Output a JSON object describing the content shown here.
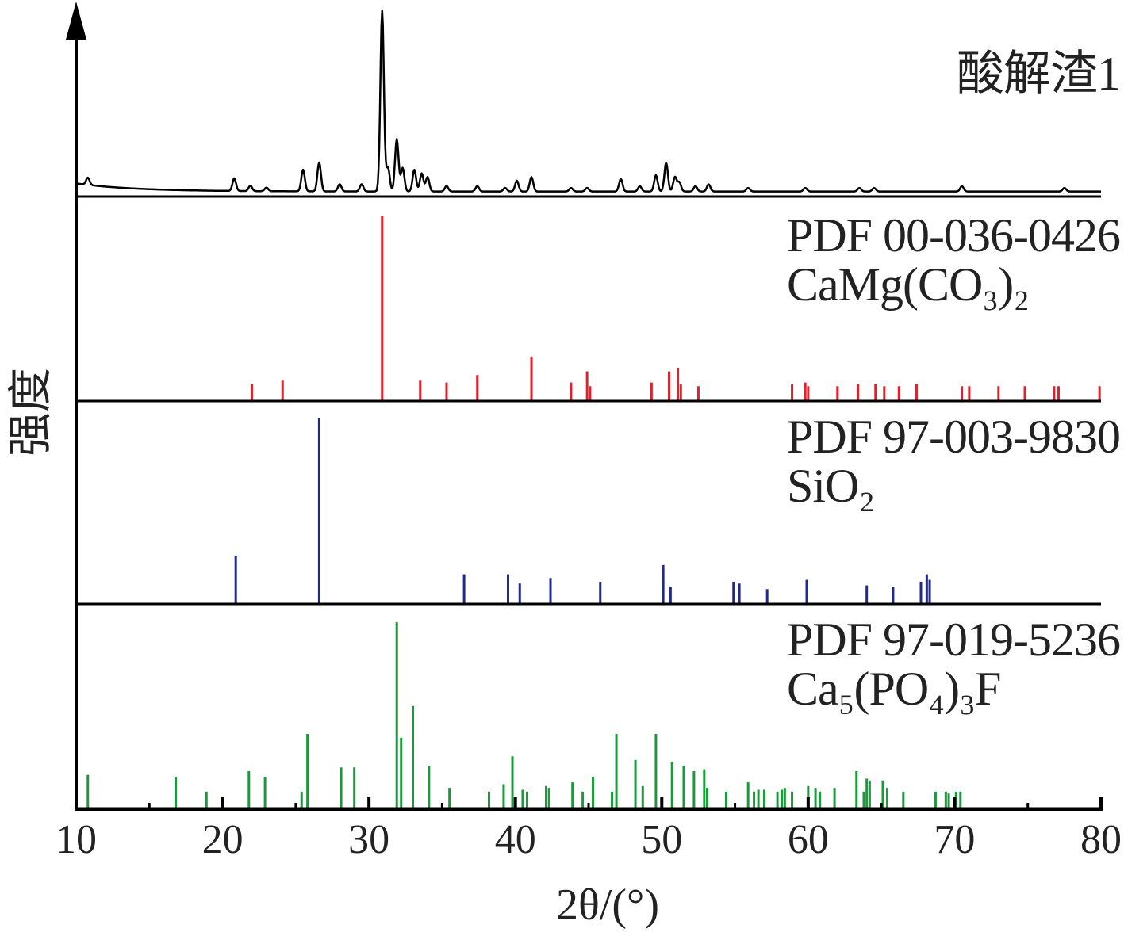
{
  "chart_data": {
    "type": "line",
    "xlabel": "2θ/(°)",
    "ylabel": "强度",
    "xlim": [
      10,
      80
    ],
    "x_ticks": [
      "10",
      "20",
      "30",
      "40",
      "50",
      "60",
      "70",
      "80"
    ],
    "colors": {
      "sample": "#000000",
      "dolomite": "#e0202a",
      "quartz": "#1f2a8c",
      "apatite": "#1a9a3a",
      "axis": "#000000"
    },
    "panels": [
      {
        "id": "sample",
        "label_lines": [
          "酸解渣1"
        ],
        "kind": "pattern",
        "peaks": [
          [
            10.8,
            0.04
          ],
          [
            20.8,
            0.07
          ],
          [
            21.9,
            0.03
          ],
          [
            23.0,
            0.02
          ],
          [
            25.5,
            0.12
          ],
          [
            26.6,
            0.16
          ],
          [
            28.0,
            0.04
          ],
          [
            29.5,
            0.04
          ],
          [
            30.9,
            1.0
          ],
          [
            31.3,
            0.13
          ],
          [
            31.9,
            0.29
          ],
          [
            32.3,
            0.13
          ],
          [
            33.1,
            0.12
          ],
          [
            33.6,
            0.1
          ],
          [
            34.0,
            0.08
          ],
          [
            35.3,
            0.03
          ],
          [
            37.4,
            0.03
          ],
          [
            39.3,
            0.02
          ],
          [
            40.1,
            0.06
          ],
          [
            41.1,
            0.08
          ],
          [
            43.8,
            0.02
          ],
          [
            44.9,
            0.02
          ],
          [
            47.2,
            0.07
          ],
          [
            48.5,
            0.03
          ],
          [
            49.6,
            0.09
          ],
          [
            50.3,
            0.16
          ],
          [
            50.9,
            0.08
          ],
          [
            51.2,
            0.05
          ],
          [
            52.3,
            0.03
          ],
          [
            53.2,
            0.04
          ],
          [
            55.9,
            0.02
          ],
          [
            59.8,
            0.02
          ],
          [
            63.5,
            0.02
          ],
          [
            64.5,
            0.02
          ],
          [
            70.5,
            0.03
          ],
          [
            77.5,
            0.02
          ]
        ]
      },
      {
        "id": "dolomite",
        "label_lines": [
          "PDF 00-036-0426",
          "CaMg(CO₃)₂"
        ],
        "kind": "sticks",
        "peaks": [
          [
            22.0,
            0.09
          ],
          [
            24.1,
            0.11
          ],
          [
            30.9,
            1.0
          ],
          [
            33.5,
            0.11
          ],
          [
            35.3,
            0.1
          ],
          [
            37.4,
            0.14
          ],
          [
            41.1,
            0.24
          ],
          [
            43.8,
            0.1
          ],
          [
            44.9,
            0.16
          ],
          [
            45.1,
            0.08
          ],
          [
            49.3,
            0.1
          ],
          [
            50.5,
            0.16
          ],
          [
            51.1,
            0.18
          ],
          [
            51.3,
            0.09
          ],
          [
            52.5,
            0.08
          ],
          [
            58.9,
            0.09
          ],
          [
            59.8,
            0.1
          ],
          [
            60.0,
            0.08
          ],
          [
            62.0,
            0.08
          ],
          [
            63.4,
            0.09
          ],
          [
            64.6,
            0.09
          ],
          [
            65.2,
            0.08
          ],
          [
            66.2,
            0.08
          ],
          [
            67.4,
            0.09
          ],
          [
            70.5,
            0.08
          ],
          [
            71.0,
            0.08
          ],
          [
            73.0,
            0.08
          ],
          [
            74.8,
            0.08
          ],
          [
            76.8,
            0.08
          ],
          [
            77.1,
            0.08
          ],
          [
            79.9,
            0.08
          ]
        ]
      },
      {
        "id": "quartz",
        "label_lines": [
          "PDF 97-003-9830",
          "SiO₂"
        ],
        "kind": "sticks",
        "peaks": [
          [
            20.9,
            0.26
          ],
          [
            26.6,
            1.0
          ],
          [
            36.5,
            0.16
          ],
          [
            39.5,
            0.16
          ],
          [
            40.3,
            0.11
          ],
          [
            42.4,
            0.14
          ],
          [
            45.8,
            0.12
          ],
          [
            50.1,
            0.21
          ],
          [
            50.6,
            0.09
          ],
          [
            54.9,
            0.12
          ],
          [
            55.3,
            0.11
          ],
          [
            57.2,
            0.08
          ],
          [
            59.9,
            0.13
          ],
          [
            64.0,
            0.1
          ],
          [
            65.8,
            0.09
          ],
          [
            67.7,
            0.12
          ],
          [
            68.1,
            0.16
          ],
          [
            68.3,
            0.13
          ]
        ]
      },
      {
        "id": "apatite",
        "label_lines": [
          "PDF 97-019-5236",
          "Ca₅(PO₄)₃F"
        ],
        "kind": "sticks",
        "peaks": [
          [
            10.8,
            0.18
          ],
          [
            16.8,
            0.17
          ],
          [
            18.9,
            0.09
          ],
          [
            21.8,
            0.2
          ],
          [
            22.9,
            0.17
          ],
          [
            25.4,
            0.09
          ],
          [
            25.8,
            0.4
          ],
          [
            28.1,
            0.22
          ],
          [
            29.0,
            0.22
          ],
          [
            31.9,
            1.0
          ],
          [
            32.2,
            0.38
          ],
          [
            33.0,
            0.55
          ],
          [
            34.1,
            0.23
          ],
          [
            35.5,
            0.11
          ],
          [
            38.2,
            0.09
          ],
          [
            39.2,
            0.13
          ],
          [
            39.8,
            0.28
          ],
          [
            40.5,
            0.1
          ],
          [
            40.8,
            0.09
          ],
          [
            42.1,
            0.12
          ],
          [
            42.3,
            0.11
          ],
          [
            43.9,
            0.14
          ],
          [
            44.6,
            0.09
          ],
          [
            45.3,
            0.17
          ],
          [
            46.6,
            0.09
          ],
          [
            46.9,
            0.4
          ],
          [
            48.2,
            0.26
          ],
          [
            48.7,
            0.12
          ],
          [
            49.6,
            0.4
          ],
          [
            50.7,
            0.25
          ],
          [
            51.5,
            0.23
          ],
          [
            52.2,
            0.2
          ],
          [
            52.9,
            0.21
          ],
          [
            53.1,
            0.11
          ],
          [
            54.4,
            0.09
          ],
          [
            55.9,
            0.14
          ],
          [
            56.3,
            0.09
          ],
          [
            56.6,
            0.1
          ],
          [
            57.0,
            0.1
          ],
          [
            57.9,
            0.09
          ],
          [
            58.2,
            0.1
          ],
          [
            58.4,
            0.11
          ],
          [
            58.9,
            0.09
          ],
          [
            60.0,
            0.12
          ],
          [
            60.5,
            0.11
          ],
          [
            60.8,
            0.09
          ],
          [
            61.8,
            0.11
          ],
          [
            63.3,
            0.2
          ],
          [
            63.8,
            0.09
          ],
          [
            64.0,
            0.16
          ],
          [
            64.2,
            0.15
          ],
          [
            65.1,
            0.15
          ],
          [
            65.4,
            0.11
          ],
          [
            66.5,
            0.09
          ],
          [
            68.7,
            0.09
          ],
          [
            69.4,
            0.09
          ],
          [
            69.6,
            0.08
          ],
          [
            70.1,
            0.09
          ],
          [
            70.4,
            0.09
          ]
        ]
      }
    ]
  }
}
